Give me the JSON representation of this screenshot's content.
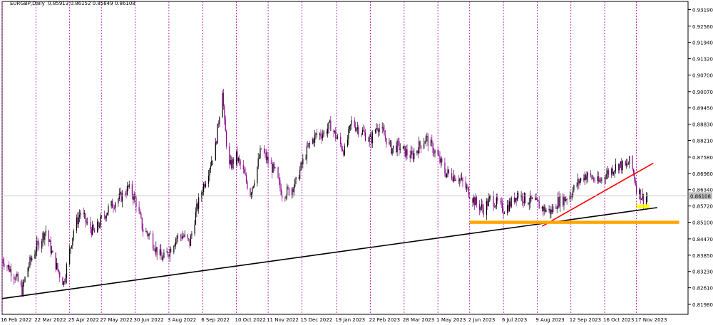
{
  "header": {
    "symbol": "EURGBP",
    "timeframe": "Daily",
    "open": "0.85913",
    "high": "0.86152",
    "low": "0.85849",
    "close": "0.86108"
  },
  "colors": {
    "background": "#ffffff",
    "grid": "#b000b0",
    "bull_candle": "#000000",
    "bear_candle": "#8b008b",
    "support_trend": "#000000",
    "rising_trend": "#ff0000",
    "support_zone": "#ffa500",
    "current_box": "#ffff00",
    "price_line": "#c0c0c0"
  },
  "chart_data": {
    "type": "candlestick",
    "title": "EURGBP,Daily",
    "y_axis_side": "right",
    "ylim": [
      0.816,
      0.935
    ],
    "y_ticks": [
      "0.93190",
      "0.92560",
      "0.91940",
      "0.91320",
      "0.90700",
      "0.90070",
      "0.89450",
      "0.88830",
      "0.88210",
      "0.87580",
      "0.86960",
      "0.86340",
      "0.85720",
      "0.85100",
      "0.84470",
      "0.83850",
      "0.83230",
      "0.82610",
      "0.81980"
    ],
    "x_ticks": [
      "16 Feb 2022",
      "22 Mar 2022",
      "25 Apr 2022",
      "27 May 2022",
      "30 Jun 2022",
      "3 Aug 2022",
      "6 Sep 2022",
      "10 Oct 2022",
      "11 Nov 2022",
      "15 Dec 2022",
      "19 Jan 2023",
      "22 Feb 2023",
      "28 Mar 2023",
      "1 May 2023",
      "2 Jun 2023",
      "6 Jul 2023",
      "9 Aug 2023",
      "12 Sep 2023",
      "16 Oct 2023",
      "17 Nov 2023"
    ],
    "current_price": 0.86108,
    "current_price_label": "0.86108",
    "close_path": [
      [
        "16 Feb 2022",
        0.837
      ],
      [
        "2 Mar 2022",
        0.83
      ],
      [
        "8 Mar 2022",
        0.825
      ],
      [
        "14 Mar 2022",
        0.834
      ],
      [
        "22 Mar 2022",
        0.841
      ],
      [
        "1 Apr 2022",
        0.848
      ],
      [
        "8 Apr 2022",
        0.838
      ],
      [
        "14 Apr 2022",
        0.832
      ],
      [
        "19 Apr 2022",
        0.828
      ],
      [
        "25 Apr 2022",
        0.84
      ],
      [
        "29 Apr 2022",
        0.848
      ],
      [
        "6 May 2022",
        0.855
      ],
      [
        "13 May 2022",
        0.85
      ],
      [
        "20 May 2022",
        0.847
      ],
      [
        "27 May 2022",
        0.852
      ],
      [
        "3 Jun 2022",
        0.856
      ],
      [
        "10 Jun 2022",
        0.859
      ],
      [
        "17 Jun 2022",
        0.861
      ],
      [
        "23 Jun 2022",
        0.864
      ],
      [
        "30 Jun 2022",
        0.86
      ],
      [
        "8 Jul 2022",
        0.848
      ],
      [
        "15 Jul 2022",
        0.846
      ],
      [
        "22 Jul 2022",
        0.84
      ],
      [
        "28 Jul 2022",
        0.837
      ],
      [
        "3 Aug 2022",
        0.84
      ],
      [
        "10 Aug 2022",
        0.845
      ],
      [
        "17 Aug 2022",
        0.846
      ],
      [
        "24 Aug 2022",
        0.843
      ],
      [
        "31 Aug 2022",
        0.856
      ],
      [
        "6 Sep 2022",
        0.864
      ],
      [
        "12 Sep 2022",
        0.871
      ],
      [
        "19 Sep 2022",
        0.88
      ],
      [
        "26 Sep 2022",
        0.902
      ],
      [
        "28 Sep 2022",
        0.888
      ],
      [
        "3 Oct 2022",
        0.872
      ],
      [
        "10 Oct 2022",
        0.876
      ],
      [
        "17 Oct 2022",
        0.87
      ],
      [
        "24 Oct 2022",
        0.862
      ],
      [
        "31 Oct 2022",
        0.872
      ],
      [
        "4 Nov 2022",
        0.879
      ],
      [
        "11 Nov 2022",
        0.874
      ],
      [
        "18 Nov 2022",
        0.87
      ],
      [
        "25 Nov 2022",
        0.862
      ],
      [
        "2 Dec 2022",
        0.863
      ],
      [
        "9 Dec 2022",
        0.866
      ],
      [
        "15 Dec 2022",
        0.873
      ],
      [
        "22 Dec 2022",
        0.88
      ],
      [
        "29 Dec 2022",
        0.884
      ],
      [
        "6 Jan 2023",
        0.885
      ],
      [
        "13 Jan 2023",
        0.888
      ],
      [
        "19 Jan 2023",
        0.883
      ],
      [
        "27 Jan 2023",
        0.878
      ],
      [
        "3 Feb 2023",
        0.889
      ],
      [
        "9 Feb 2023",
        0.887
      ],
      [
        "15 Feb 2023",
        0.885
      ],
      [
        "22 Feb 2023",
        0.882
      ],
      [
        "1 Mar 2023",
        0.888
      ],
      [
        "8 Mar 2023",
        0.884
      ],
      [
        "15 Mar 2023",
        0.879
      ],
      [
        "22 Mar 2023",
        0.88
      ],
      [
        "28 Mar 2023",
        0.878
      ],
      [
        "5 Apr 2023",
        0.876
      ],
      [
        "12 Apr 2023",
        0.88
      ],
      [
        "19 Apr 2023",
        0.883
      ],
      [
        "26 Apr 2023",
        0.879
      ],
      [
        "1 May 2023",
        0.876
      ],
      [
        "8 May 2023",
        0.87
      ],
      [
        "15 May 2023",
        0.869
      ],
      [
        "22 May 2023",
        0.868
      ],
      [
        "2 Jun 2023",
        0.862
      ],
      [
        "9 Jun 2023",
        0.858
      ],
      [
        "16 Jun 2023",
        0.856
      ],
      [
        "23 Jun 2023",
        0.86
      ],
      [
        "30 Jun 2023",
        0.858
      ],
      [
        "6 Jul 2023",
        0.856
      ],
      [
        "13 Jul 2023",
        0.858
      ],
      [
        "20 Jul 2023",
        0.862
      ],
      [
        "27 Jul 2023",
        0.86
      ],
      [
        "3 Aug 2023",
        0.859
      ],
      [
        "9 Aug 2023",
        0.858
      ],
      [
        "16 Aug 2023",
        0.856
      ],
      [
        "23 Aug 2023",
        0.855
      ],
      [
        "30 Aug 2023",
        0.859
      ],
      [
        "6 Sep 2023",
        0.86
      ],
      [
        "12 Sep 2023",
        0.862
      ],
      [
        "19 Sep 2023",
        0.866
      ],
      [
        "26 Sep 2023",
        0.869
      ],
      [
        "3 Oct 2023",
        0.868
      ],
      [
        "10 Oct 2023",
        0.866
      ],
      [
        "16 Oct 2023",
        0.869
      ],
      [
        "23 Oct 2023",
        0.871
      ],
      [
        "30 Oct 2023",
        0.873
      ],
      [
        "6 Nov 2023",
        0.872
      ],
      [
        "10 Nov 2023",
        0.874
      ],
      [
        "14 Nov 2023",
        0.87
      ],
      [
        "17 Nov 2023",
        0.864
      ],
      [
        "22 Nov 2023",
        0.861
      ],
      [
        "24 Nov 2023",
        0.86
      ],
      [
        "28 Nov 2023",
        0.8611
      ]
    ],
    "annotations": [
      {
        "name": "support-trendline",
        "type": "line",
        "from": [
          "16 Feb 2022",
          0.822
        ],
        "to": [
          "8 Dec 2023",
          0.8566
        ]
      },
      {
        "name": "rising-trendline",
        "type": "line",
        "from": [
          "14 Aug 2023",
          0.8495
        ],
        "to": [
          "4 Dec 2023",
          0.8735
        ]
      },
      {
        "name": "support-zone",
        "type": "horizontal-band",
        "from_date": "2 Jun 2023",
        "to_date": "30 Dec 2023",
        "y0": 0.8504,
        "y1": 0.8516
      },
      {
        "name": "current-price-box",
        "type": "box",
        "from_date": "17 Nov 2023",
        "to_date": "30 Nov 2023",
        "y0": 0.8563,
        "y1": 0.8578
      }
    ]
  }
}
